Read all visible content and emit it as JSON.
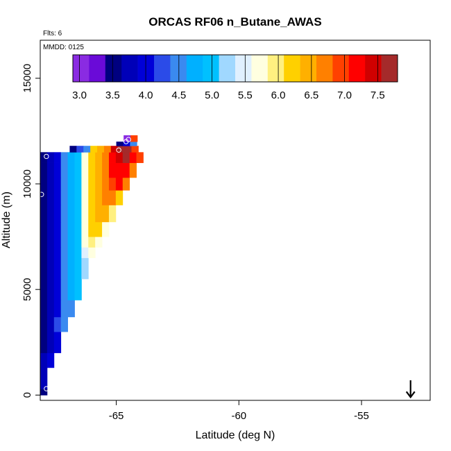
{
  "chart_data": {
    "type": "heatmap",
    "title": "ORCAS RF06 n_Butane_AWAS",
    "annotations": {
      "flights": "Flts: 6",
      "date": "MMDD: 0125"
    },
    "xlabel": "Latitude (deg N)",
    "ylabel": "Altitude (m)",
    "xlim": [
      -68.1,
      -52.2
    ],
    "ylim": [
      -250,
      16800
    ],
    "x_ticks": [
      {
        "value": -65,
        "label": "-65"
      },
      {
        "value": -60,
        "label": "-60"
      },
      {
        "value": -55,
        "label": "-55"
      }
    ],
    "y_ticks": [
      {
        "value": 0,
        "label": "0"
      },
      {
        "value": 5000,
        "label": "5000"
      },
      {
        "value": 10000,
        "label": "10000"
      },
      {
        "value": 15000,
        "label": "15000"
      }
    ],
    "colorbar": {
      "range": [
        2.9,
        7.8
      ],
      "ticks": [
        {
          "value": 3.0,
          "label": "3.0"
        },
        {
          "value": 3.5,
          "label": "3.5"
        },
        {
          "value": 4.0,
          "label": "4.0"
        },
        {
          "value": 4.5,
          "label": "4.5"
        },
        {
          "value": 5.0,
          "label": "5.0"
        },
        {
          "value": 5.5,
          "label": "5.5"
        },
        {
          "value": 6.0,
          "label": "6.0"
        },
        {
          "value": 6.5,
          "label": "6.5"
        },
        {
          "value": 7.0,
          "label": "7.0"
        },
        {
          "value": 7.5,
          "label": "7.5"
        }
      ],
      "colors": [
        "#8a2be2",
        "#6a0ad8",
        "#000080",
        "#0000b8",
        "#0000d8",
        "#2b4be8",
        "#3a8af0",
        "#00b0ff",
        "#00c0ff",
        "#a0d8ff",
        "#e0f0ff",
        "#ffffe0",
        "#fff080",
        "#ffd000",
        "#ffb000",
        "#ff8000",
        "#ff4000",
        "#ff0000",
        "#d00000",
        "#a52a2a"
      ]
    },
    "grid": false,
    "cell_size": {
      "lat": 0.28,
      "alt": 300
    },
    "rows": [
      {
        "alt_min": 0,
        "alt_max": 300,
        "start_lat": -68.1,
        "values": [
          3.5
        ]
      },
      {
        "alt_min": 300,
        "alt_max": 1300,
        "start_lat": -68.1,
        "values": [
          3.7
        ]
      },
      {
        "alt_min": 1300,
        "alt_max": 2000,
        "start_lat": -68.1,
        "values": [
          3.7,
          4.1
        ]
      },
      {
        "alt_min": 2000,
        "alt_max": 3000,
        "start_lat": -68.1,
        "values": [
          3.6,
          3.8,
          4.0
        ]
      },
      {
        "alt_min": 3000,
        "alt_max": 3700,
        "start_lat": -68.1,
        "values": [
          3.6,
          3.8,
          4.2,
          4.5
        ]
      },
      {
        "alt_min": 3700,
        "alt_max": 4500,
        "start_lat": -68.1,
        "values": [
          3.6,
          3.8,
          4.1,
          4.4,
          4.6
        ]
      },
      {
        "alt_min": 4500,
        "alt_max": 5500,
        "start_lat": -68.1,
        "values": [
          3.6,
          3.8,
          4.1,
          4.4,
          4.7,
          4.9
        ]
      },
      {
        "alt_min": 5500,
        "alt_max": 6500,
        "start_lat": -68.1,
        "values": [
          3.6,
          3.8,
          4.1,
          4.4,
          4.7,
          5.0,
          5.2
        ]
      },
      {
        "alt_min": 6500,
        "alt_max": 7000,
        "start_lat": -68.1,
        "values": [
          3.6,
          3.8,
          4.1,
          4.4,
          4.7,
          5.0,
          5.5,
          5.7
        ]
      },
      {
        "alt_min": 7000,
        "alt_max": 7500,
        "start_lat": -68.1,
        "values": [
          3.6,
          3.8,
          4.1,
          4.4,
          4.7,
          5.0,
          5.6,
          6.0,
          5.7
        ]
      },
      {
        "alt_min": 7500,
        "alt_max": 8200,
        "start_lat": -68.1,
        "values": [
          3.6,
          3.8,
          4.1,
          4.4,
          4.7,
          5.0,
          5.7,
          6.2,
          6.3,
          5.8
        ]
      },
      {
        "alt_min": 8200,
        "alt_max": 9000,
        "start_lat": -68.1,
        "values": [
          3.6,
          3.8,
          4.1,
          4.4,
          4.7,
          5.0,
          5.7,
          6.2,
          6.4,
          6.5,
          6.0
        ]
      },
      {
        "alt_min": 9000,
        "alt_max": 9700,
        "start_lat": -68.1,
        "values": [
          3.6,
          3.8,
          4.1,
          4.4,
          4.7,
          5.0,
          5.7,
          6.2,
          6.4,
          6.6,
          6.8,
          6.3
        ]
      },
      {
        "alt_min": 9700,
        "alt_max": 10300,
        "start_lat": -68.1,
        "values": [
          3.6,
          3.8,
          4.1,
          4.4,
          4.7,
          5.0,
          5.7,
          6.2,
          6.4,
          6.7,
          7.0,
          7.1,
          6.7
        ]
      },
      {
        "alt_min": 10300,
        "alt_max": 11000,
        "start_lat": -68.1,
        "values": [
          3.6,
          3.8,
          4.1,
          4.4,
          4.7,
          5.0,
          5.7,
          6.2,
          6.4,
          6.7,
          7.1,
          7.3,
          7.2,
          6.8
        ]
      },
      {
        "alt_min": 11000,
        "alt_max": 11500,
        "start_lat": -68.1,
        "values": [
          3.6,
          3.8,
          4.1,
          4.4,
          4.7,
          5.0,
          5.7,
          6.2,
          6.5,
          6.8,
          7.2,
          7.5,
          7.6,
          7.3,
          7.0
        ]
      },
      {
        "alt_min": 11500,
        "alt_max": 11800,
        "start_lat": -66.9,
        "values": [
          3.6,
          4.2,
          4.6,
          6.3,
          6.5,
          6.8,
          7.4,
          7.7,
          7.6,
          7.0
        ]
      },
      {
        "alt_min": 11800,
        "alt_max": 12000,
        "start_lat": -65.0,
        "values": [
          3.5,
          4.0,
          4.6
        ]
      },
      {
        "alt_min": 12000,
        "alt_max": 12300,
        "start_lat": -64.7,
        "values": [
          3.1,
          7.0
        ]
      }
    ],
    "flight_points": [
      {
        "lat": -67.85,
        "alt": 300
      },
      {
        "lat": -67.85,
        "alt": 11300
      },
      {
        "lat": -68.05,
        "alt": 9500
      },
      {
        "lat": -64.9,
        "alt": 11600
      },
      {
        "lat": -64.6,
        "alt": 12000
      },
      {
        "lat": -64.5,
        "alt": 12100
      }
    ],
    "arrow": {
      "lat": -53.0,
      "alt_tip": -100,
      "alt_tail": 700
    }
  }
}
